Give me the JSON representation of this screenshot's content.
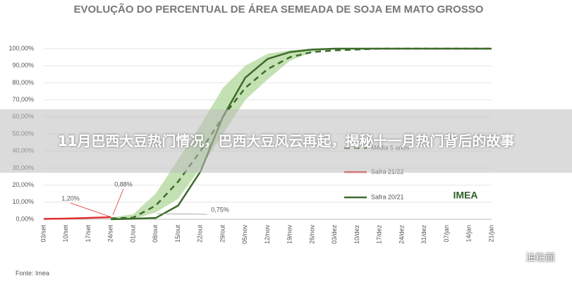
{
  "chart_data": {
    "type": "line",
    "title": "EVOLUÇÃO DO PERCENTUAL DE ÁREA SEMEADA DE SOJA EM MATO GROSSO",
    "categories": [
      "03/set",
      "10/set",
      "17/set",
      "24/set",
      "01/out",
      "08/out",
      "15/out",
      "22/out",
      "29/out",
      "05/nov",
      "12/nov",
      "19/nov",
      "26/nov",
      "03/dez",
      "10/dez",
      "17/dez",
      "24/dez",
      "31/dez",
      "07/jan",
      "14/jan",
      "21/jan"
    ],
    "ylim": [
      0,
      100
    ],
    "yticks": [
      {
        "value": 0,
        "label": "0,00%"
      },
      {
        "value": 10,
        "label": "10,00%"
      },
      {
        "value": 20,
        "label": "20,00%"
      },
      {
        "value": 30,
        "label": "30,00%"
      },
      {
        "value": 40,
        "label": "40,00%"
      },
      {
        "value": 50,
        "label": "50,00%"
      },
      {
        "value": 60,
        "label": "60,00%"
      },
      {
        "value": 70,
        "label": "70,00%"
      },
      {
        "value": 80,
        "label": "80,00%"
      },
      {
        "value": 90,
        "label": "90,00%"
      },
      {
        "value": 100,
        "label": "100,00%"
      }
    ],
    "band": {
      "color": "#b5d9a0",
      "lower": [
        null,
        null,
        null,
        0,
        0,
        4,
        12,
        30,
        50,
        70,
        82,
        93,
        98,
        100,
        100,
        100,
        100,
        100,
        100,
        100,
        100
      ],
      "upper": [
        null,
        null,
        null,
        1,
        3,
        15,
        35,
        55,
        77,
        90,
        97,
        99,
        100,
        100,
        100,
        100,
        100,
        100,
        100,
        100,
        100
      ]
    },
    "series": [
      {
        "name": "Média 5 anos",
        "color": "#3d6b2a",
        "dashed": true,
        "values": [
          null,
          null,
          null,
          0.5,
          1,
          8,
          22,
          40,
          60,
          77,
          88,
          95,
          98,
          99,
          99.5,
          100,
          100,
          100,
          100,
          100,
          100
        ]
      },
      {
        "name": "Safra 21/22",
        "color": "#e03030",
        "values": [
          0.2,
          0.4,
          0.8,
          1.2,
          null,
          null,
          null,
          null,
          null,
          null,
          null,
          null,
          null,
          null,
          null,
          null,
          null,
          null,
          null,
          null,
          null
        ]
      },
      {
        "name": "Safra 20/21",
        "color": "#3d6b2a",
        "values": [
          null,
          null,
          null,
          0,
          0.3,
          0.75,
          8,
          28,
          60,
          83,
          94,
          98,
          99.5,
          100,
          100,
          100,
          100,
          100,
          100,
          100,
          100
        ]
      }
    ],
    "annotations": [
      "1,20%",
      "0,88%",
      "0,75%"
    ],
    "source": "Fonte: Imea",
    "logo": "IMEA"
  },
  "overlay_title": "11月巴西大豆热门情况，巴西大豆风云再起，揭秘十一月热门背后的故事",
  "watermark": "油粕面"
}
